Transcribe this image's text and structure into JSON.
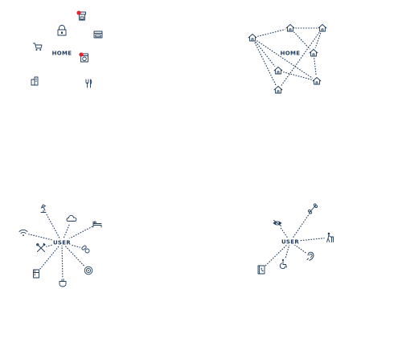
{
  "colors": {
    "ink": "#1f3a5a",
    "alert": "#e0242f",
    "background": "#ffffff"
  },
  "panels": [
    {
      "name": "home-appliances",
      "hub_label": "HOME",
      "hub_shows_links": false,
      "nodes": [
        {
          "icon": "lock-icon",
          "alert": false
        },
        {
          "icon": "coffee-machine-icon",
          "alert": true
        },
        {
          "icon": "oven-icon",
          "alert": false
        },
        {
          "icon": "shopping-cart-icon",
          "alert": false
        },
        {
          "icon": "washing-machine-icon",
          "alert": true
        },
        {
          "icon": "building-icon",
          "alert": false
        },
        {
          "icon": "cutlery-icon",
          "alert": false
        }
      ]
    },
    {
      "name": "home-network",
      "hub_label": "HOME",
      "hub_shows_links": false,
      "nodes": [
        {
          "icon": "house-icon",
          "alert": false
        },
        {
          "icon": "house-icon",
          "alert": false
        },
        {
          "icon": "house-icon",
          "alert": false
        },
        {
          "icon": "house-icon",
          "alert": false
        },
        {
          "icon": "house-icon",
          "alert": false
        },
        {
          "icon": "house-icon",
          "alert": false
        },
        {
          "icon": "house-icon",
          "alert": false
        }
      ],
      "links": [
        [
          0,
          1
        ],
        [
          0,
          3
        ],
        [
          0,
          6
        ],
        [
          1,
          2
        ],
        [
          1,
          4
        ],
        [
          2,
          4
        ],
        [
          4,
          6
        ],
        [
          3,
          6
        ],
        [
          0,
          5
        ],
        [
          2,
          5
        ]
      ]
    },
    {
      "name": "user-smart-home",
      "hub_label": "USER",
      "hub_shows_links": true,
      "nodes": [
        {
          "icon": "lamp-icon",
          "alert": false
        },
        {
          "icon": "cloud-icon",
          "alert": false
        },
        {
          "icon": "bed-icon",
          "alert": false
        },
        {
          "icon": "wifi-icon",
          "alert": false
        },
        {
          "icon": "tools-icon",
          "alert": false
        },
        {
          "icon": "pills-icon",
          "alert": false
        },
        {
          "icon": "fridge-icon",
          "alert": false
        },
        {
          "icon": "pot-icon",
          "alert": false
        },
        {
          "icon": "washer-icon",
          "alert": false
        }
      ]
    },
    {
      "name": "user-care",
      "hub_label": "USER",
      "hub_shows_links": true,
      "nodes": [
        {
          "icon": "eye-icon",
          "alert": false
        },
        {
          "icon": "bone-icon",
          "alert": false
        },
        {
          "icon": "elderly-walker-icon",
          "alert": false
        },
        {
          "icon": "phone-book-icon",
          "alert": false
        },
        {
          "icon": "wheelchair-icon",
          "alert": false
        },
        {
          "icon": "hearing-aid-icon",
          "alert": false
        }
      ]
    }
  ]
}
